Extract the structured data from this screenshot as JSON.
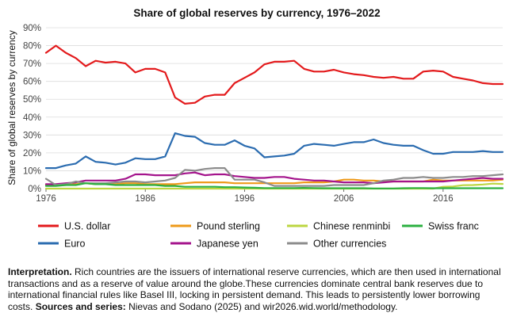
{
  "chart_data": {
    "type": "line",
    "title": "Share of global reserves by currency, 1976–2022",
    "xlabel": "",
    "ylabel": "Share of global reserves by currency",
    "xlim": [
      1976,
      2022
    ],
    "ylim": [
      0,
      90
    ],
    "x_ticks": [
      "1976",
      "1986",
      "1996",
      "2006",
      "2016"
    ],
    "y_ticks": [
      "0%",
      "10%",
      "20%",
      "30%",
      "40%",
      "50%",
      "60%",
      "70%",
      "80%",
      "90%"
    ],
    "grid": true,
    "legend_position": "bottom",
    "x": [
      1976,
      1977,
      1978,
      1979,
      1980,
      1981,
      1982,
      1983,
      1984,
      1985,
      1986,
      1987,
      1988,
      1989,
      1990,
      1991,
      1992,
      1993,
      1994,
      1995,
      1996,
      1997,
      1998,
      1999,
      2000,
      2001,
      2002,
      2003,
      2004,
      2005,
      2006,
      2007,
      2008,
      2009,
      2010,
      2011,
      2012,
      2013,
      2014,
      2015,
      2016,
      2017,
      2018,
      2019,
      2020,
      2021,
      2022
    ],
    "series": [
      {
        "name": "U.S. dollar",
        "color": "#e31a1c",
        "values": [
          76,
          80,
          76,
          73,
          68.5,
          71.5,
          70.5,
          71,
          70,
          65,
          67,
          67,
          65,
          51,
          47.5,
          48,
          51.5,
          52.5,
          52.5,
          59,
          62,
          65,
          69.5,
          71,
          71,
          71.5,
          67,
          65.5,
          65.5,
          66.5,
          65,
          64,
          63.5,
          62.5,
          62,
          62.5,
          61.5,
          61.5,
          65.5,
          66,
          65.5,
          62.5,
          61.5,
          60.5,
          59,
          58.5,
          58.5
        ]
      },
      {
        "name": "Euro",
        "color": "#2b6cb0",
        "values": [
          11.5,
          11.5,
          13,
          14,
          18,
          15,
          14.5,
          13.5,
          14.5,
          17,
          16.5,
          16.5,
          18,
          31,
          29.5,
          29,
          25.5,
          24.5,
          24.5,
          27,
          24,
          22.5,
          17.5,
          18,
          18.5,
          19.5,
          24,
          25,
          24.5,
          24,
          25,
          26,
          26,
          27.5,
          25.5,
          24.5,
          24,
          24,
          21.5,
          19.5,
          19.5,
          20.5,
          20.5,
          20.5,
          21,
          20.5,
          20.5
        ]
      },
      {
        "name": "Pound sterling",
        "color": "#ee9a1a",
        "values": [
          2,
          2,
          2,
          2.5,
          3,
          2.5,
          2.5,
          2.5,
          3,
          3,
          2.5,
          2.5,
          2.5,
          2.5,
          3,
          3.5,
          3.5,
          3.5,
          3.5,
          3,
          3,
          3,
          3,
          3,
          3,
          3,
          3.5,
          3.5,
          3.5,
          4,
          5,
          5,
          4.5,
          4.5,
          4,
          4,
          4,
          4,
          4,
          5,
          4.5,
          4.5,
          4.5,
          4.5,
          4.5,
          4.5,
          5
        ]
      },
      {
        "name": "Japanese yen",
        "color": "#a4148c",
        "values": [
          2.5,
          2.5,
          3,
          3.5,
          4.5,
          4.5,
          4.5,
          4.5,
          5.5,
          8,
          8,
          7.5,
          7.5,
          7.5,
          8.5,
          9,
          7.5,
          8,
          8,
          7,
          6.5,
          6,
          6,
          6.5,
          6.5,
          5.5,
          5,
          4.5,
          4.5,
          4,
          3.5,
          3.5,
          3.5,
          3,
          3.5,
          4,
          4,
          4,
          4,
          4,
          4,
          4.5,
          5,
          5.5,
          6,
          5.5,
          5.5
        ]
      },
      {
        "name": "Chinese renminbi",
        "color": "#bcd641",
        "values": [
          0,
          0,
          0,
          0,
          0,
          0,
          0,
          0,
          0,
          0,
          0,
          0,
          0,
          0,
          0,
          0,
          0,
          0,
          0,
          0,
          0,
          0,
          0,
          0,
          0,
          0,
          0,
          0,
          0,
          0,
          0,
          0,
          0,
          0,
          0,
          0,
          0,
          0,
          0,
          0,
          1,
          1.2,
          1.9,
          2,
          2.3,
          2.8,
          2.6
        ]
      },
      {
        "name": "Other currencies",
        "color": "#8c8c8c",
        "values": [
          5.5,
          2,
          2.5,
          4,
          3,
          3,
          3,
          3.5,
          4,
          4,
          3.5,
          4,
          4.5,
          6,
          10.5,
          10,
          11,
          11.5,
          11.5,
          5,
          5,
          5,
          3.5,
          1.5,
          1.5,
          1.5,
          1.5,
          1.5,
          1.5,
          2,
          2,
          2,
          2,
          3,
          4.5,
          5,
          6,
          6,
          6.5,
          6,
          6,
          6.5,
          6.5,
          7,
          7,
          7.5,
          8
        ]
      },
      {
        "name": "Swiss franc",
        "color": "#2cb040",
        "values": [
          1.5,
          1.5,
          2,
          2,
          3,
          2.5,
          2.5,
          2,
          2,
          2,
          2,
          2,
          1.5,
          1.5,
          1,
          1,
          1,
          1,
          0.8,
          0.8,
          0.6,
          0.5,
          0.3,
          0.3,
          0.3,
          0.3,
          0.4,
          0.3,
          0.2,
          0.2,
          0.2,
          0.2,
          0.2,
          0.1,
          0.1,
          0.1,
          0.2,
          0.3,
          0.3,
          0.2,
          0.2,
          0.2,
          0.2,
          0.2,
          0.2,
          0.2,
          0.2
        ]
      }
    ],
    "legend": [
      "U.S. dollar",
      "Pound sterling",
      "Chinese renminbi",
      "Swiss franc",
      "Euro",
      "Japanese yen",
      "Other currencies"
    ]
  },
  "note": {
    "lead": "Interpretation.",
    "body": " Rich countries are the issuers of international reserve currencies, which are then used in international transactions and as a reserve of value around the globe.These currencies dominate central bank reserves due to international financial rules like Basel III, locking in persistent demand. This leads to persistently lower borrowing costs. ",
    "sources_label": "Sources and series:",
    "sources": " Nievas and Sodano (2025) and wir2026.wid.world/methodology."
  }
}
